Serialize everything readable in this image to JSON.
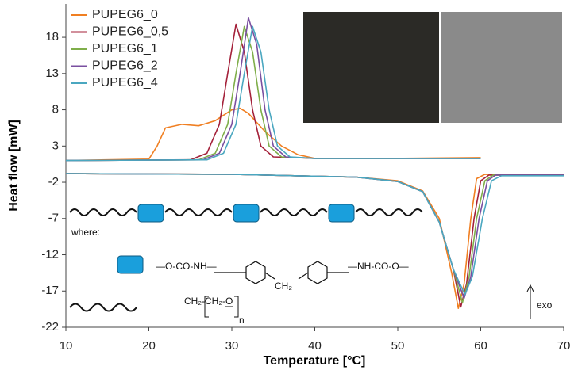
{
  "chart_data": {
    "type": "line",
    "x_label": "Temperature [°C]",
    "y_label": "Heat flow [mW]",
    "xlim": [
      10,
      70
    ],
    "xticks": [
      10,
      20,
      30,
      40,
      50,
      60,
      70
    ],
    "ylim": [
      -22,
      22.6
    ],
    "yticks": [
      -22,
      -17,
      -12,
      -7,
      -2,
      3,
      8,
      13,
      18
    ],
    "legend": "upper left",
    "series": [
      {
        "name": "PUPEG6_0",
        "color": "#f07f22",
        "x": [
          10,
          20,
          21,
          22,
          24,
          26,
          28,
          30,
          31,
          32,
          34,
          36,
          38,
          40,
          50,
          60,
          null,
          10,
          30,
          45,
          50,
          53,
          55,
          56.5,
          57.3,
          58,
          58.8,
          59.5,
          60.5,
          70
        ],
        "values": [
          1,
          1.2,
          3,
          5.5,
          6,
          5.8,
          6.5,
          8,
          8.2,
          7.5,
          5,
          3,
          1.8,
          1.3,
          1.3,
          1.4,
          null,
          -0.8,
          -0.9,
          -1.3,
          -1.8,
          -3.2,
          -7,
          -14.5,
          -19.4,
          -16,
          -7,
          -1.5,
          -0.9,
          -1.0
        ]
      },
      {
        "name": "PUPEG6_0,5",
        "color": "#a4213a",
        "x": [
          10,
          25,
          27,
          28.5,
          29.5,
          30.5,
          31.5,
          32.5,
          33.5,
          35,
          40,
          60,
          null,
          10,
          30,
          45,
          50,
          53,
          55,
          56.7,
          57.6,
          58.3,
          59.2,
          60,
          61,
          70
        ],
        "values": [
          1,
          1.1,
          2,
          6,
          13,
          19.8,
          16,
          8,
          3,
          1.5,
          1.3,
          1.3,
          null,
          -0.8,
          -0.9,
          -1.3,
          -1.9,
          -3.3,
          -7.5,
          -14,
          -19.2,
          -16,
          -7,
          -1.8,
          -1,
          -1
        ]
      },
      {
        "name": "PUPEG6_1",
        "color": "#7fae4a",
        "x": [
          10,
          26,
          28,
          29.5,
          30.5,
          31.5,
          32.5,
          33.5,
          34.5,
          36,
          40,
          60,
          null,
          10,
          30,
          45,
          50,
          53,
          55,
          56.7,
          57.8,
          58.6,
          59.5,
          60.5,
          61.5,
          70
        ],
        "values": [
          1,
          1.1,
          2,
          6,
          13,
          19.5,
          16,
          8,
          3,
          1.5,
          1.3,
          1.3,
          null,
          -0.8,
          -0.9,
          -1.3,
          -1.9,
          -3.3,
          -7.5,
          -14,
          -18.6,
          -15,
          -7,
          -1.8,
          -1,
          -1
        ]
      },
      {
        "name": "PUPEG6_2",
        "color": "#7a4fa0",
        "x": [
          10,
          26.5,
          28.5,
          30,
          31,
          32,
          33,
          34,
          35,
          36.5,
          40,
          60,
          null,
          10,
          30,
          45,
          50,
          53,
          55,
          56.7,
          58,
          58.8,
          59.8,
          60.8,
          61.8,
          70
        ],
        "values": [
          1,
          1.1,
          2,
          6,
          13,
          20.7,
          17,
          8,
          3,
          1.5,
          1.3,
          1.3,
          null,
          -0.8,
          -0.9,
          -1.3,
          -1.9,
          -3.3,
          -7.5,
          -14,
          -18,
          -15,
          -7,
          -1.8,
          -1,
          -1
        ]
      },
      {
        "name": "PUPEG6_4",
        "color": "#4aa7c0",
        "x": [
          10,
          27,
          29,
          30.5,
          31.5,
          32.5,
          33.5,
          34.5,
          35.5,
          37,
          40,
          60,
          null,
          10,
          30,
          45,
          50,
          53,
          55,
          56.7,
          58.1,
          59,
          60.2,
          61.3,
          62.5,
          70
        ],
        "values": [
          1,
          1.1,
          2,
          6,
          13,
          19.5,
          16,
          8,
          3,
          1.5,
          1.3,
          1.3,
          null,
          -0.8,
          -0.9,
          -1.3,
          -1.9,
          -3.3,
          -7.5,
          -14,
          -17.5,
          -15,
          -7,
          -1.8,
          -1.1,
          -1.1
        ]
      }
    ],
    "annotations": {
      "where": "where:",
      "exo": "exo",
      "urethane_left": "—O-CO-NH—",
      "methylene": "CH₂",
      "urethane_right": "—NH-CO-O—",
      "repeat_unit": "CH₂-CH₂-O",
      "repeat_n": "n"
    }
  }
}
